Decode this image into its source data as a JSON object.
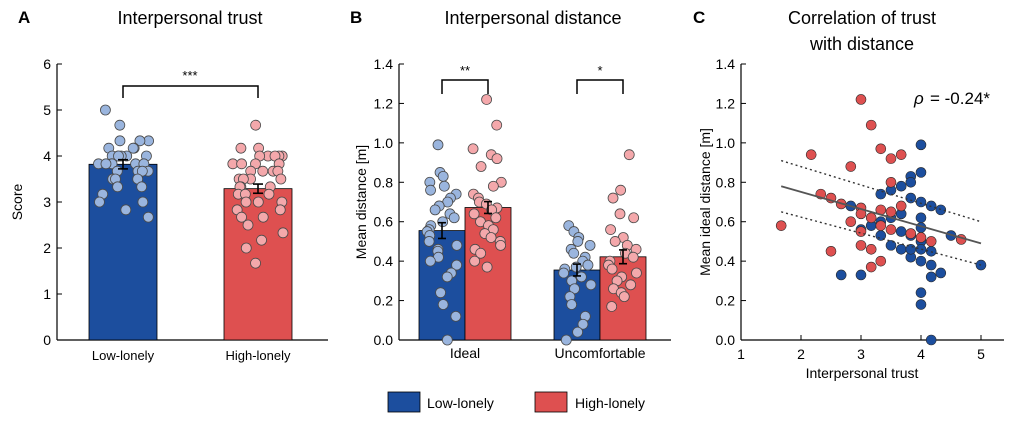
{
  "colors": {
    "low_bar": "#1c4e9e",
    "high_bar": "#de5050",
    "low_dot": "#9ab5de",
    "high_dot": "#f4a8ab",
    "low_scatter": "#1c4e9e",
    "high_scatter": "#de5050"
  },
  "legend": {
    "items": [
      {
        "label": "Low-lonely",
        "color": "#1c4e9e"
      },
      {
        "label": "High-lonely",
        "color": "#de5050"
      }
    ]
  },
  "chart_data": [
    {
      "panel": "A",
      "type": "bar",
      "title": "Interpersonal trust",
      "ylabel": "Score",
      "xlabel": "",
      "ylim": [
        0,
        6
      ],
      "yticks": [
        "0",
        "1",
        "2",
        "3",
        "4",
        "5",
        "6"
      ],
      "categories": [
        "Low-lonely",
        "High-lonely"
      ],
      "values": [
        3.82,
        3.29
      ],
      "errors": [
        0.1,
        0.1
      ],
      "significance": "***",
      "points": [
        [
          5.0,
          4.67,
          4.33,
          4.33,
          4.33,
          4.17,
          4.17,
          4.17,
          4.0,
          4.0,
          4.0,
          4.0,
          4.0,
          4.0,
          3.83,
          3.83,
          3.83,
          3.83,
          3.83,
          3.83,
          3.67,
          3.67,
          3.67,
          3.67,
          3.5,
          3.5,
          3.5,
          3.33,
          3.33,
          3.17,
          3.0,
          3.0,
          2.83,
          2.67
        ],
        [
          4.67,
          4.17,
          4.17,
          4.0,
          4.0,
          4.0,
          4.0,
          4.0,
          3.83,
          3.83,
          3.83,
          3.83,
          3.67,
          3.67,
          3.67,
          3.67,
          3.5,
          3.5,
          3.5,
          3.5,
          3.33,
          3.33,
          3.33,
          3.17,
          3.17,
          3.17,
          3.0,
          3.0,
          3.0,
          2.83,
          2.83,
          2.67,
          2.67,
          2.5,
          2.33,
          2.17,
          2.0,
          1.67
        ]
      ]
    },
    {
      "panel": "B",
      "type": "bar",
      "title": "Interpersonal distance",
      "ylabel": "Mean distance [m]",
      "xlabel": "",
      "ylim": [
        0,
        1.4
      ],
      "yticks": [
        "0.0",
        "0.2",
        "0.4",
        "0.6",
        "0.8",
        "1.0",
        "1.2",
        "1.4"
      ],
      "categories": [
        "Ideal",
        "Uncomfortable"
      ],
      "series": [
        {
          "name": "Low-lonely",
          "values": [
            0.555,
            0.355
          ],
          "errors": [
            0.04,
            0.03
          ]
        },
        {
          "name": "High-lonely",
          "values": [
            0.672,
            0.422
          ],
          "errors": [
            0.03,
            0.035
          ]
        }
      ],
      "significance": [
        "**",
        "*"
      ],
      "points": {
        "Ideal": [
          [
            0.99,
            0.85,
            0.83,
            0.8,
            0.78,
            0.76,
            0.74,
            0.72,
            0.7,
            0.68,
            0.66,
            0.64,
            0.62,
            0.6,
            0.58,
            0.56,
            0.55,
            0.53,
            0.5,
            0.48,
            0.46,
            0.45,
            0.42,
            0.4,
            0.38,
            0.34,
            0.32,
            0.24,
            0.18,
            0.12,
            0.0
          ],
          [
            1.22,
            1.09,
            0.97,
            0.94,
            0.92,
            0.88,
            0.8,
            0.78,
            0.74,
            0.72,
            0.7,
            0.69,
            0.67,
            0.66,
            0.64,
            0.62,
            0.6,
            0.58,
            0.56,
            0.54,
            0.52,
            0.5,
            0.48,
            0.46,
            0.44,
            0.4,
            0.37
          ]
        ],
        "Uncomfortable": [
          [
            0.58,
            0.55,
            0.52,
            0.5,
            0.48,
            0.46,
            0.44,
            0.42,
            0.4,
            0.38,
            0.37,
            0.36,
            0.34,
            0.32,
            0.3,
            0.28,
            0.26,
            0.22,
            0.18,
            0.12,
            0.08,
            0.04,
            0.0
          ],
          [
            0.94,
            0.76,
            0.72,
            0.64,
            0.62,
            0.56,
            0.52,
            0.5,
            0.48,
            0.46,
            0.44,
            0.42,
            0.4,
            0.38,
            0.36,
            0.34,
            0.32,
            0.3,
            0.28,
            0.26,
            0.24,
            0.22,
            0.17
          ]
        ]
      }
    },
    {
      "panel": "C",
      "type": "scatter",
      "title": "Correlation of trust",
      "subtitle": "with distance",
      "xlabel": "Interpersonal trust",
      "ylabel": "Mean ideal distance [m]",
      "xlim": [
        1,
        5.3
      ],
      "ylim": [
        0,
        1.4
      ],
      "xticks": [
        "1",
        "2",
        "3",
        "4",
        "5"
      ],
      "yticks": [
        "0.0",
        "0.2",
        "0.4",
        "0.6",
        "0.8",
        "1.0",
        "1.2",
        "1.4"
      ],
      "annotation_symbol": "ρ",
      "annotation_value": "= -0.24*",
      "fit": {
        "x": [
          1.67,
          5.0
        ],
        "y": [
          0.78,
          0.49
        ],
        "ci_upper": [
          0.91,
          0.6
        ],
        "ci_lower": [
          0.65,
          0.38
        ]
      },
      "series": [
        {
          "name": "Low-lonely",
          "x": [
            4.0,
            4.0,
            3.83,
            3.83,
            3.67,
            3.5,
            3.33,
            3.83,
            4.0,
            4.17,
            4.33,
            3.67,
            3.5,
            3.33,
            3.17,
            3.0,
            2.83,
            3.67,
            3.83,
            4.0,
            3.5,
            4.0,
            4.17,
            3.67,
            3.83,
            4.0,
            4.17,
            4.33,
            4.17,
            3.83,
            4.0,
            4.0,
            2.67,
            5.0,
            4.17,
            3.0,
            3.33,
            4.5,
            4.0,
            4.0
          ],
          "y": [
            0.99,
            0.85,
            0.83,
            0.8,
            0.78,
            0.76,
            0.74,
            0.72,
            0.7,
            0.68,
            0.66,
            0.64,
            0.62,
            0.6,
            0.58,
            0.56,
            0.68,
            0.55,
            0.53,
            0.5,
            0.48,
            0.46,
            0.45,
            0.46,
            0.42,
            0.4,
            0.38,
            0.34,
            0.32,
            0.46,
            0.24,
            0.18,
            0.33,
            0.38,
            0.0,
            0.33,
            0.53,
            0.53,
            0.62,
            0.57
          ]
        },
        {
          "name": "High-lonely",
          "x": [
            3.0,
            3.17,
            3.33,
            3.67,
            3.5,
            2.83,
            2.33,
            3.5,
            2.5,
            2.67,
            3.0,
            3.33,
            3.0,
            3.17,
            2.83,
            3.33,
            3.5,
            3.83,
            4.0,
            4.17,
            3.0,
            3.17,
            4.67,
            1.67,
            2.5,
            3.33,
            3.17,
            3.67,
            2.17,
            3.0,
            3.5
          ],
          "y": [
            1.22,
            1.09,
            0.97,
            0.94,
            0.92,
            0.88,
            0.74,
            0.8,
            0.72,
            0.69,
            0.67,
            0.66,
            0.64,
            0.62,
            0.6,
            0.58,
            0.56,
            0.54,
            0.52,
            0.5,
            0.48,
            0.46,
            0.51,
            0.58,
            0.45,
            0.4,
            0.37,
            0.68,
            0.94,
            0.55,
            0.65
          ]
        }
      ]
    }
  ]
}
